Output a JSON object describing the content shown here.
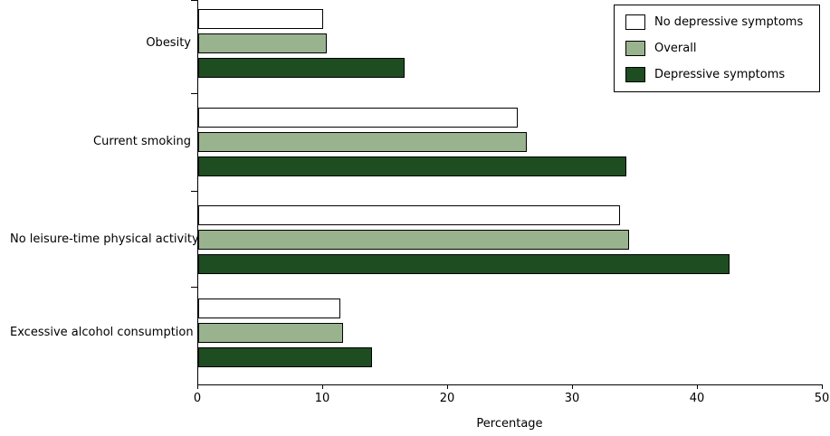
{
  "chart_data": {
    "type": "bar",
    "orientation": "horizontal",
    "title": "",
    "xlabel": "Percentage",
    "ylabel": "",
    "xlim": [
      0,
      50
    ],
    "xticks": [
      0,
      10,
      20,
      30,
      40,
      50
    ],
    "grid": false,
    "legend_position": "top-right",
    "bar_border_color": "#000000",
    "categories": [
      "Obesity",
      "Current smoking",
      "No leisure-time physical activity",
      "Excessive alcohol consumption"
    ],
    "series": [
      {
        "name": "No depressive symptoms",
        "color": "#ffffff",
        "values": [
          10.0,
          25.6,
          33.8,
          11.4
        ]
      },
      {
        "name": "Overall",
        "color": "#99b38e",
        "values": [
          10.3,
          26.3,
          34.5,
          11.6
        ]
      },
      {
        "name": "Depressive symptoms",
        "color": "#1e4d22",
        "values": [
          16.5,
          34.3,
          42.5,
          13.9
        ]
      }
    ]
  },
  "layout_note": ""
}
